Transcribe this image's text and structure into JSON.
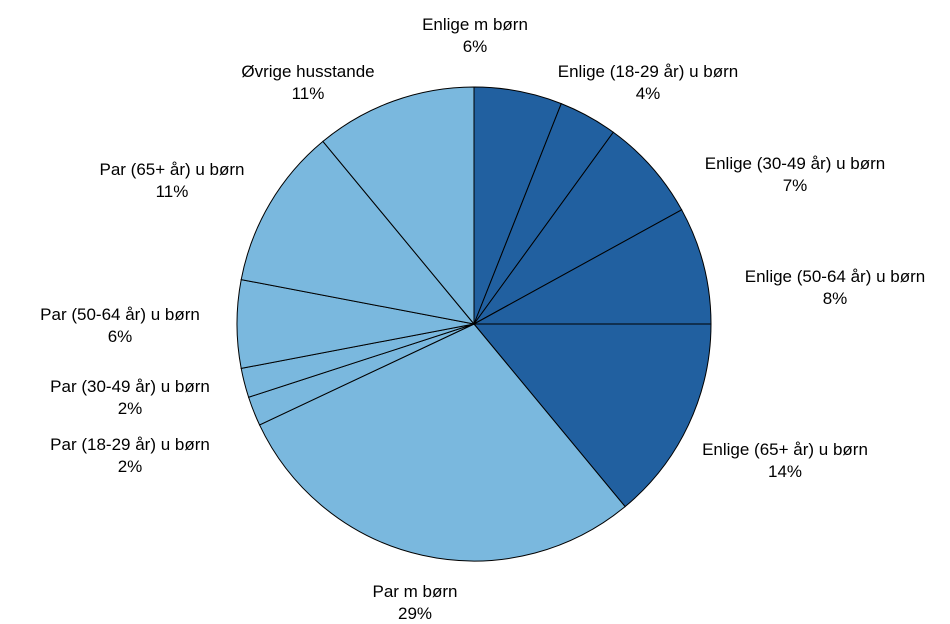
{
  "chart_data": {
    "type": "pie",
    "title": "",
    "colors": {
      "enlige": "#2160A0",
      "par": "#7AB8DE"
    },
    "slices": [
      {
        "name": "Enlige m børn",
        "value": 6,
        "label": "6%",
        "group": "enlige"
      },
      {
        "name": "Enlige (18-29 år) u børn",
        "value": 4,
        "label": "4%",
        "group": "enlige"
      },
      {
        "name": "Enlige (30-49 år) u børn",
        "value": 7,
        "label": "7%",
        "group": "enlige"
      },
      {
        "name": "Enlige (50-64 år) u børn",
        "value": 8,
        "label": "8%",
        "group": "enlige"
      },
      {
        "name": "Enlige (65+ år) u børn",
        "value": 14,
        "label": "14%",
        "group": "enlige"
      },
      {
        "name": "Par m børn",
        "value": 29,
        "label": "29%",
        "group": "par"
      },
      {
        "name": "Par (18-29 år) u børn",
        "value": 2,
        "label": "2%",
        "group": "par"
      },
      {
        "name": "Par (30-49 år) u børn",
        "value": 2,
        "label": "2%",
        "group": "par"
      },
      {
        "name": "Par (50-64 år) u børn",
        "value": 6,
        "label": "6%",
        "group": "par"
      },
      {
        "name": "Par (65+ år) u børn",
        "value": 11,
        "label": "11%",
        "group": "par"
      },
      {
        "name": "Øvrige husstande",
        "value": 11,
        "label": "11%",
        "group": "par"
      }
    ]
  }
}
